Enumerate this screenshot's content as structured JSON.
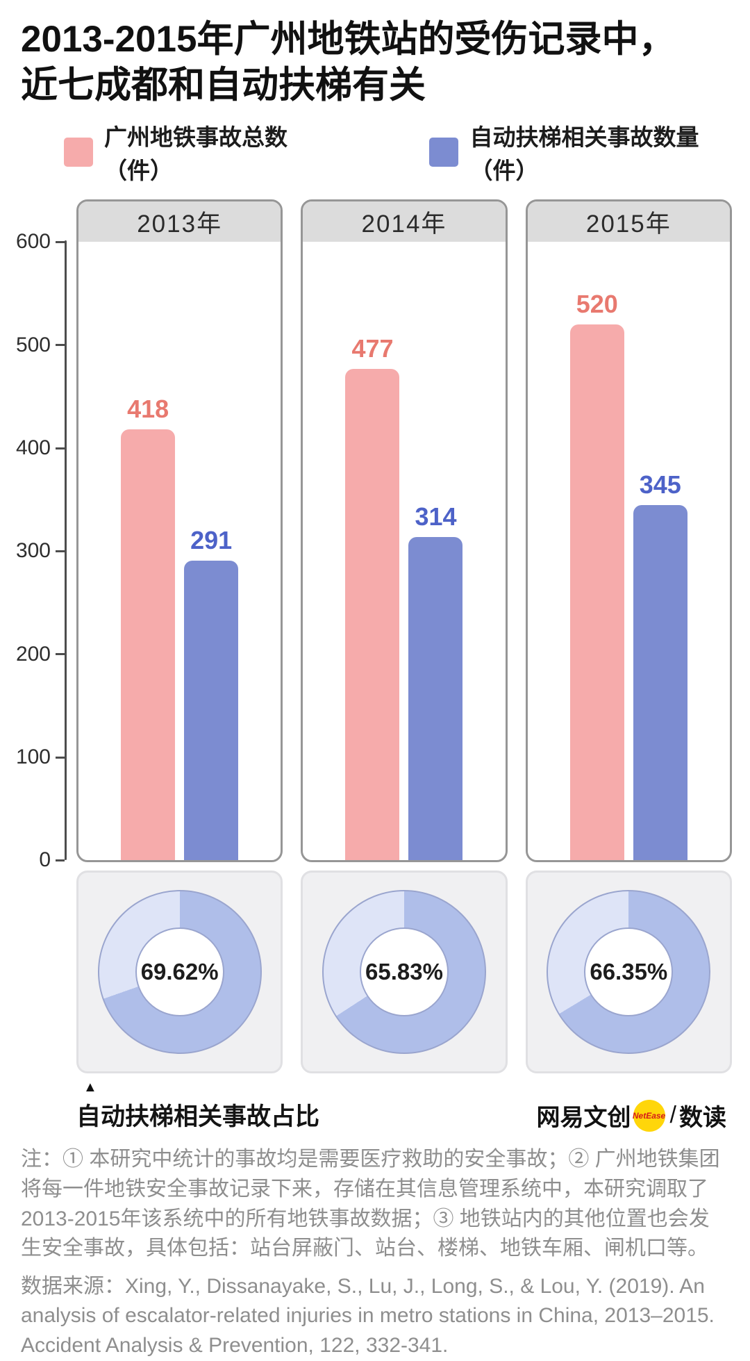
{
  "title": {
    "line1": "2013-2015年广州地铁站的受伤记录中，",
    "line2": "近七成都和自动扶梯有关"
  },
  "legend": [
    {
      "label": "广州地铁事故总数（件）",
      "color": "#F6ABAB"
    },
    {
      "label": "自动扶梯相关事故数量（件）",
      "color": "#7C8CD1"
    }
  ],
  "chart_data": {
    "type": "bar",
    "categories": [
      "2013年",
      "2014年",
      "2015年"
    ],
    "series": [
      {
        "name": "广州地铁事故总数（件）",
        "color": "#F6ABAB",
        "values": [
          418,
          477,
          520
        ]
      },
      {
        "name": "自动扶梯相关事故数量（件）",
        "color": "#7C8CD1",
        "values": [
          291,
          314,
          345
        ]
      }
    ],
    "ylim": [
      0,
      600
    ],
    "yticks_desc": [
      600,
      500,
      400,
      300,
      200,
      100,
      0
    ],
    "grid": false,
    "legend_position": "top",
    "donuts": {
      "label": "自动扶梯相关事故占比",
      "percent_labels": [
        "69.62%",
        "65.83%",
        "66.35%"
      ],
      "percent_values": [
        69.62,
        65.83,
        66.35
      ]
    }
  },
  "colors": {
    "total_bar": "#F6ABAB",
    "escalator_bar": "#7C8CD1",
    "total_value_text": "#E8796F",
    "escalator_value_text": "#4D62C8",
    "donut_dark": "#AFBEE9",
    "donut_light": "#DEE4F7",
    "header_bg": "#DCDCDC",
    "card_border": "#969696",
    "donut_panel_bg": "#F0F0F2",
    "badge_yellow": "#FFD60A",
    "badge_text_red": "#D61A1A"
  },
  "footer": {
    "brand_left": "网易文创",
    "badge_text": "NetEase",
    "slash": "/",
    "brand_right": "数读"
  },
  "notes": {
    "note1": "注：① 本研究中统计的事故均是需要医疗救助的安全事故；② 广州地铁集团将每一件地铁安全事故记录下来，存储在其信息管理系统中，本研究调取了2013-2015年该系统中的所有地铁事故数据；③ 地铁站内的其他位置也会发生安全事故，具体包括：站台屏蔽门、站台、楼梯、地铁车厢、闸机口等。",
    "source": "数据来源：Xing, Y., Dissanayake, S., Lu, J., Long, S., & Lou, Y. (2019). An analysis of escalator-related injuries in metro stations in China, 2013–2015. Accident Analysis & Prevention, 122, 332-341."
  }
}
